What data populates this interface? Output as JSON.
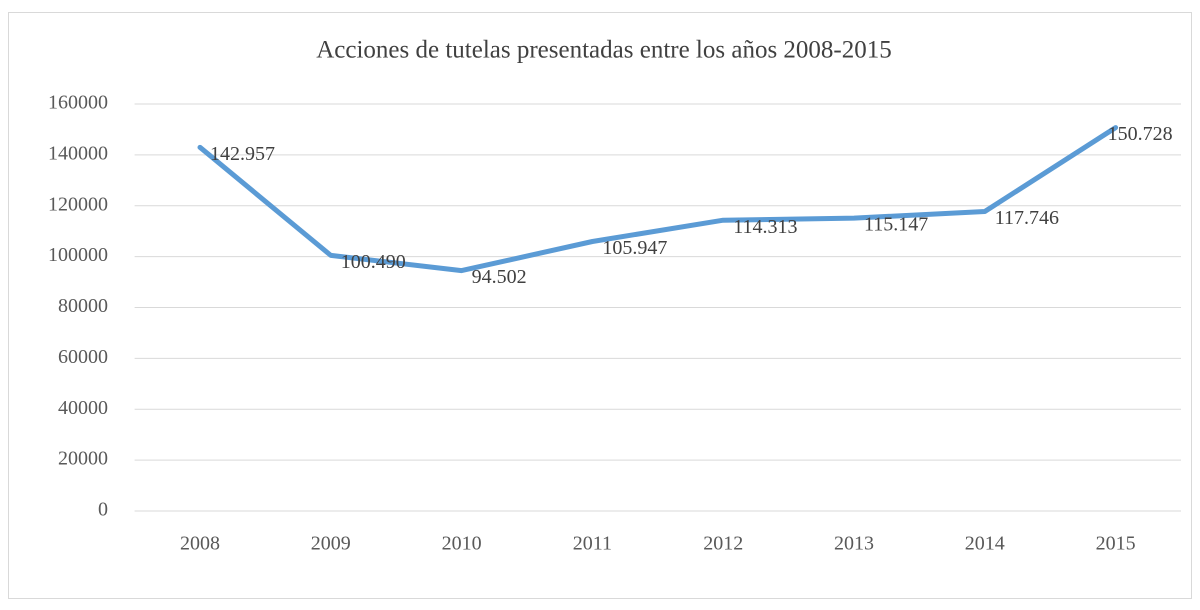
{
  "chart_data": {
    "type": "line",
    "title": "Acciones de tutelas presentadas entre los años 2008-2015",
    "categories": [
      "2008",
      "2009",
      "2010",
      "2011",
      "2012",
      "2013",
      "2014",
      "2015"
    ],
    "series": [
      {
        "name": null,
        "color": "#5b9bd5",
        "values": [
          142957,
          100490,
          94502,
          105947,
          114313,
          115147,
          117746,
          150728
        ],
        "value_labels": [
          "142.957",
          "100.490",
          "94.502",
          "105.947",
          "114.313",
          "115.147",
          "117.746",
          "150.728"
        ]
      }
    ],
    "ylim": [
      0,
      160000
    ],
    "yticks": [
      0,
      20000,
      40000,
      60000,
      80000,
      100000,
      120000,
      140000,
      160000
    ],
    "grid": true
  }
}
